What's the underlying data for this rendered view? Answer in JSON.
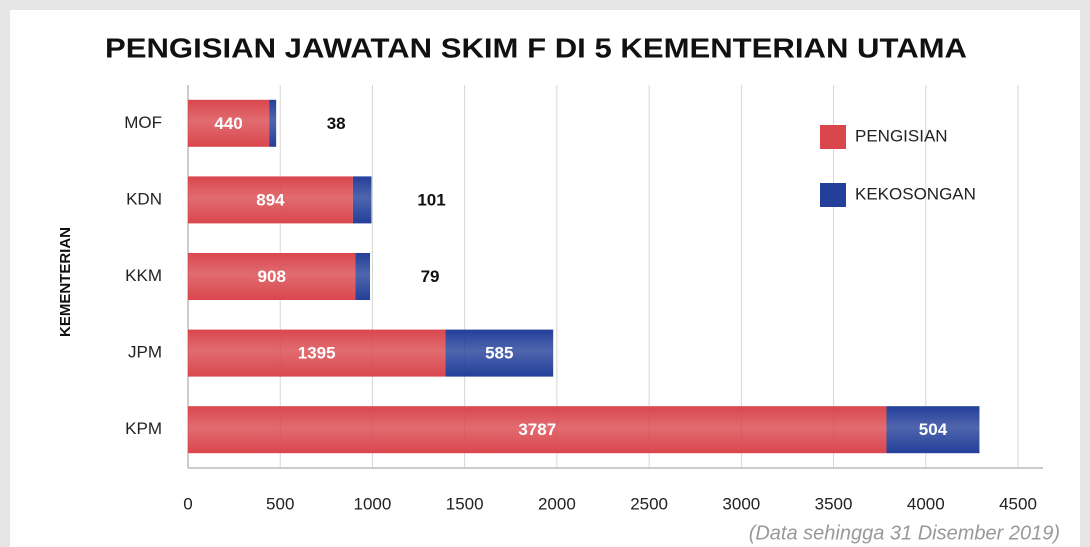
{
  "chart_data": {
    "type": "stacked-barh",
    "title": "PENGISIAN JAWATAN SKIM F DI 5 KEMENTERIAN UTAMA",
    "ylabel": "KEMENTERIAN",
    "note": "(Data sehingga 31 Disember 2019)",
    "categories": [
      "MOF",
      "KDN",
      "KKM",
      "JPM",
      "KPM"
    ],
    "series": [
      {
        "name": "PENGISIAN",
        "color": "#d9474d",
        "values": [
          440,
          894,
          908,
          1395,
          3787
        ]
      },
      {
        "name": "KEKOSONGAN",
        "color": "#233f99",
        "values": [
          38,
          101,
          79,
          585,
          504
        ]
      }
    ],
    "xlim": [
      0,
      4500
    ],
    "xticks": [
      0,
      500,
      1000,
      1500,
      2000,
      2500,
      3000,
      3500,
      4000,
      4500
    ],
    "grid": true,
    "legend": "upper right"
  }
}
